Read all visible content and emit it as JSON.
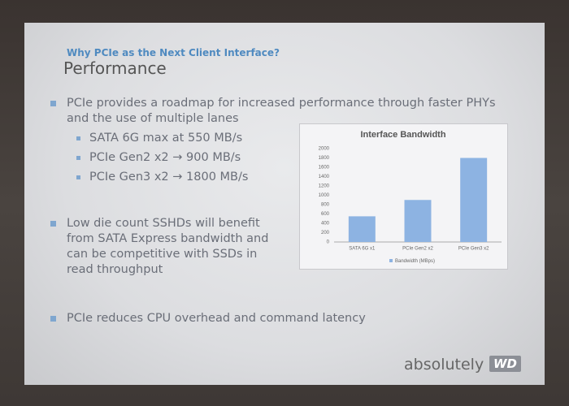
{
  "slide": {
    "kicker": "Why PCIe as the Next Client Interface?",
    "title": "Performance",
    "bullets": [
      {
        "text": "PCIe provides a roadmap for increased performance through faster PHYs and the use of multiple lanes",
        "sub": [
          "SATA 6G max at 550 MB/s",
          "PCIe Gen2 x2 → 900 MB/s",
          "PCIe Gen3 x2 → 1800 MB/s"
        ]
      },
      {
        "text": "Low die count SSHDs will benefit from SATA Express bandwidth and can be competitive with SSDs in read throughput"
      },
      {
        "text": "PCIe reduces CPU overhead and command latency"
      }
    ],
    "logo_text": "absolutely",
    "logo_badge": "WD"
  },
  "chart_data": {
    "type": "bar",
    "title": "Interface Bandwidth",
    "categories": [
      "SATA 6G x1",
      "PCIe Gen2 x2",
      "PCIe Gen3 x2"
    ],
    "series": [
      {
        "name": "Bandwidth (MBps)",
        "color": "#8db3e2",
        "values": [
          550,
          900,
          1800
        ]
      }
    ],
    "ylim": [
      0,
      2000
    ],
    "yticks": [
      0,
      200,
      400,
      600,
      800,
      1000,
      1200,
      1400,
      1600,
      1800,
      2000
    ],
    "grid": false,
    "legend": "bottom"
  }
}
